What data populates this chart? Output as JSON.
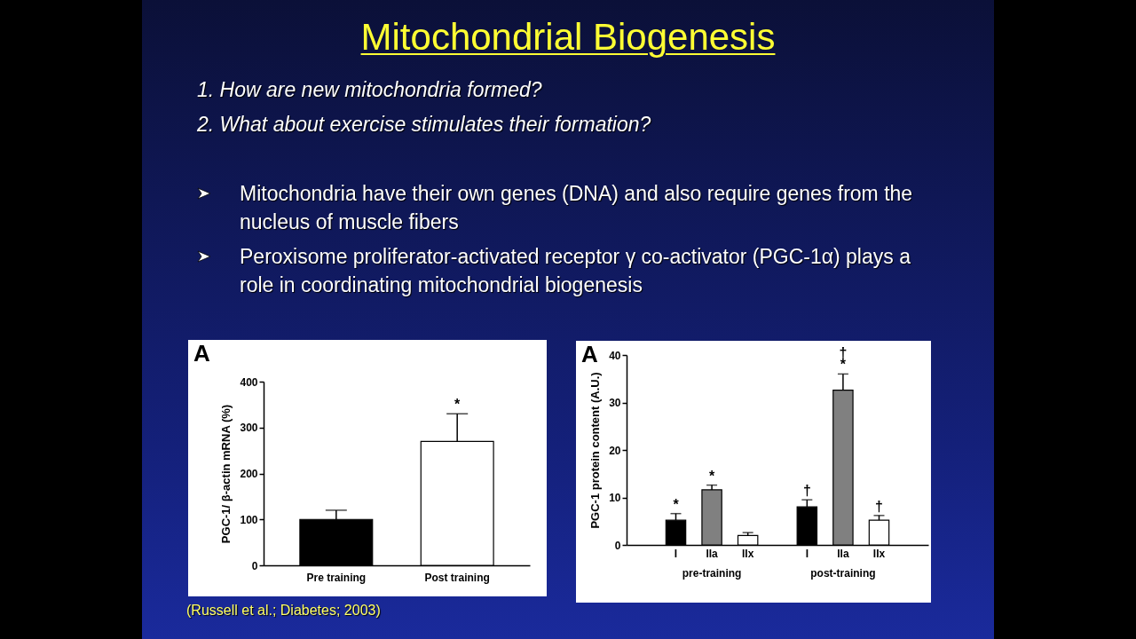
{
  "chart_data": [
    {
      "type": "other",
      "title": "Mitochondrial Biogenesis",
      "annotations": [
        "1. How are new mitochondria formed?",
        "2. What about exercise stimulates their formation?",
        "Mitochondria have their own genes (DNA) and also require genes from the nucleus of muscle fibers",
        "Peroxisome proliferator-activated receptor γ co-activator (PGC-1α) plays a role in coordinating mitochondrial biogenesis"
      ]
    },
    {
      "type": "bar",
      "categories": [
        "Pre training",
        "Post training"
      ],
      "values": [
        100,
        270
      ],
      "colors": [
        "#000000",
        "#ffffff"
      ],
      "errors": [
        [
          100,
          120
        ],
        [
          270,
          330
        ]
      ],
      "ylabel": "PGC-1/ β-actin mRNA (%)",
      "ylim": [
        0,
        400
      ],
      "yticks": [
        0,
        100,
        200,
        300,
        400
      ],
      "annotations": [
        "A",
        "*",
        "(Russell et al.; Diabetes; 2003)"
      ]
    },
    {
      "type": "bar",
      "categories": [
        "pre-training",
        "post-training"
      ],
      "ylabel": "PGC-1 protein content (A.U.)",
      "ylim": [
        0,
        40
      ],
      "yticks": [
        0,
        10,
        20,
        30,
        40
      ],
      "series": [
        {
          "name": "I",
          "color": "#000000",
          "values": [
            5.2,
            8.0
          ],
          "errors": [
            [
              5.2,
              6.6
            ],
            [
              8.0,
              9.5
            ]
          ]
        },
        {
          "name": "IIa",
          "color": "#808080",
          "values": [
            11.6,
            32.6
          ],
          "errors": [
            [
              11.6,
              12.6
            ],
            [
              32.6,
              36
            ]
          ]
        },
        {
          "name": "IIx",
          "color": "#ffffff",
          "values": [
            2.0,
            5.2
          ],
          "errors": [
            [
              2.0,
              2.6
            ],
            [
              5.2,
              6.2
            ]
          ]
        }
      ],
      "annotations": [
        "A",
        "*",
        "*",
        "†",
        "*",
        "†",
        "†"
      ]
    }
  ]
}
